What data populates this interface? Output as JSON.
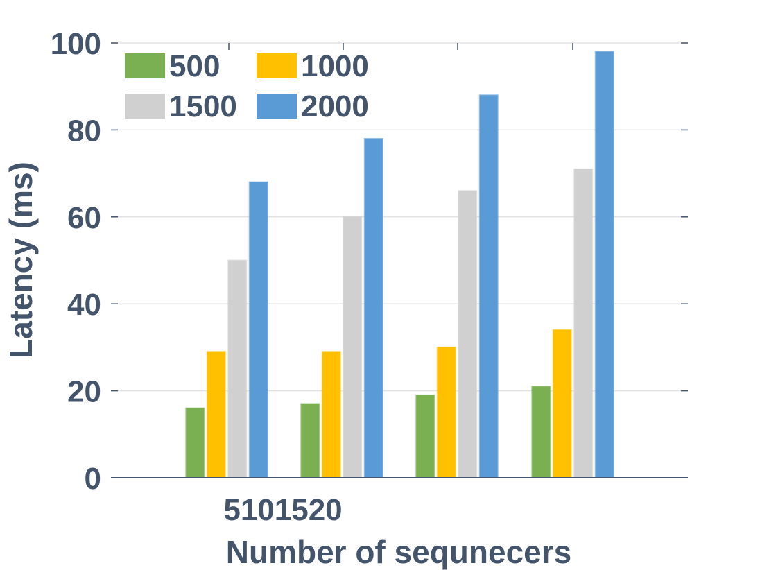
{
  "chart_data": {
    "type": "bar",
    "title": "",
    "xlabel": "Number of sequnecers",
    "ylabel": "Latency (ms)",
    "ylim": [
      0,
      100
    ],
    "yticks": [
      0,
      20,
      40,
      60,
      80,
      100
    ],
    "x_tick_text": "5101520",
    "categories": [
      "5",
      "10",
      "15",
      "20"
    ],
    "series": [
      {
        "name": "500",
        "color": "#7ab051",
        "values": [
          16,
          17,
          19,
          21
        ]
      },
      {
        "name": "1000",
        "color": "#ffc000",
        "values": [
          29,
          29,
          30,
          34
        ]
      },
      {
        "name": "1500",
        "color": "#d0d0d0",
        "values": [
          50,
          60,
          66,
          71
        ]
      },
      {
        "name": "2000",
        "color": "#5b9bd5",
        "values": [
          68,
          78,
          88,
          98
        ]
      }
    ],
    "grid": true,
    "legend_position": "top-left"
  }
}
